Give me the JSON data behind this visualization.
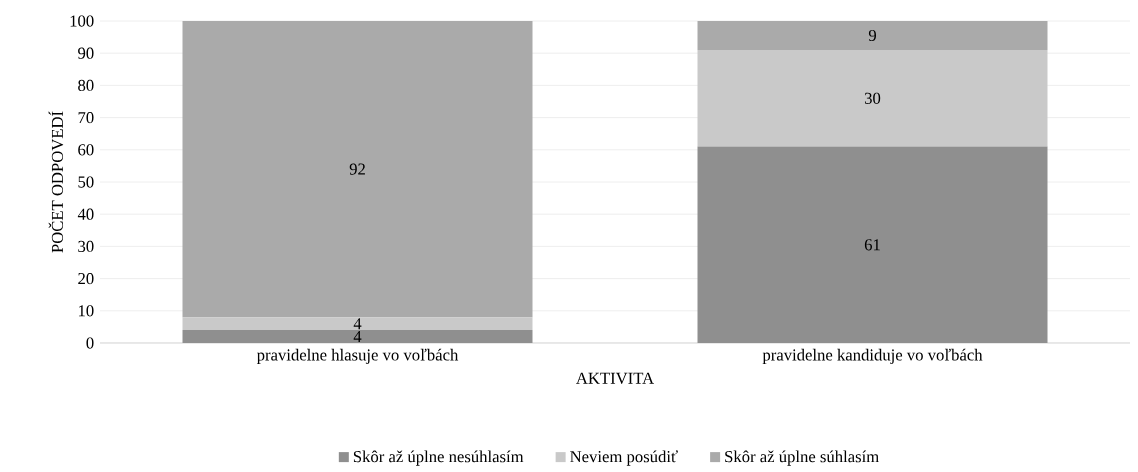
{
  "chart_data": {
    "type": "bar",
    "stacked": true,
    "xlabel": "AKTIVITA",
    "ylabel": "POČET ODPOVEDÍ",
    "categories": [
      "pravidelne hlasuje vo voľbách",
      "pravidelne kandiduje vo voľbách"
    ],
    "series": [
      {
        "name": "Skôr až úplne nesúhlasím",
        "color": "#8f8f8f",
        "values": [
          4,
          61
        ]
      },
      {
        "name": "Neviem posúdiť",
        "color": "#c9c9c9",
        "values": [
          4,
          30
        ]
      },
      {
        "name": "Skôr až úplne súhlasím",
        "color": "#aaaaaa",
        "values": [
          92,
          9
        ]
      }
    ],
    "ylim": [
      0,
      100
    ],
    "yticks": [
      0,
      10,
      20,
      30,
      40,
      50,
      60,
      70,
      80,
      90,
      100
    ],
    "grid": "y",
    "legend": "bottom",
    "data_labels": true
  }
}
